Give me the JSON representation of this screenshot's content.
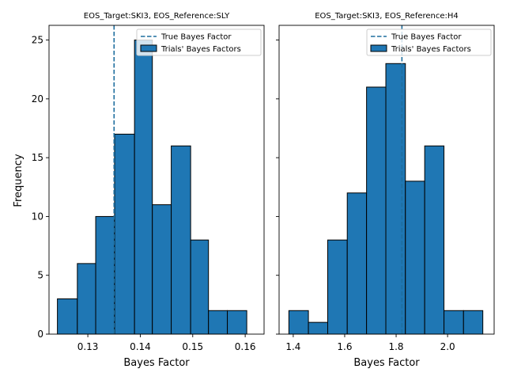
{
  "figure": {
    "ylabel": "Frequency"
  },
  "legend": {
    "true_label": "True Bayes Factor",
    "trials_label": "Trials' Bayes Factors"
  },
  "colors": {
    "bar_fill": "#1f77b4",
    "bar_edge": "#000000",
    "true_line": "#1f6e9e"
  },
  "chart_data": [
    {
      "type": "bar",
      "title": "EOS_Target:SKI3, EOS_Reference:SLY",
      "xlabel": "Bayes Factor",
      "ylabel": "Frequency",
      "xlim": [
        0.1226,
        0.1636
      ],
      "ylim": [
        0,
        26.25
      ],
      "xticks": [
        0.13,
        0.14,
        0.15,
        0.16
      ],
      "xtick_labels": [
        "0.13",
        "0.14",
        "0.15",
        "0.16"
      ],
      "yticks": [
        0,
        5,
        10,
        15,
        20,
        25
      ],
      "ytick_labels": [
        "0",
        "5",
        "10",
        "15",
        "20",
        "25"
      ],
      "bin_edges": [
        0.1242,
        0.128,
        0.1315,
        0.1351,
        0.1389,
        0.1423,
        0.1459,
        0.1496,
        0.153,
        0.1566,
        0.1603
      ],
      "counts": [
        3,
        6,
        10,
        17,
        25,
        11,
        16,
        8,
        2,
        2
      ],
      "true_value": 0.135,
      "legend_position": "upper right"
    },
    {
      "type": "bar",
      "title": "EOS_Target:SKI3, EOS_Reference:H4",
      "xlabel": "Bayes Factor",
      "ylabel": "",
      "xlim": [
        1.345,
        2.181
      ],
      "ylim": [
        0,
        26.25
      ],
      "xticks": [
        1.4,
        1.6,
        1.8,
        2.0
      ],
      "xtick_labels": [
        "1.4",
        "1.6",
        "1.8",
        "2.0"
      ],
      "yticks": [
        0,
        5,
        10,
        15,
        20,
        25
      ],
      "ytick_labels": [],
      "bin_edges": [
        1.383,
        1.459,
        1.534,
        1.61,
        1.685,
        1.76,
        1.836,
        1.911,
        1.986,
        2.062,
        2.137
      ],
      "counts": [
        2,
        1,
        8,
        12,
        21,
        23,
        13,
        16,
        2,
        2
      ],
      "true_value": 1.8225,
      "legend_position": "upper right"
    }
  ]
}
